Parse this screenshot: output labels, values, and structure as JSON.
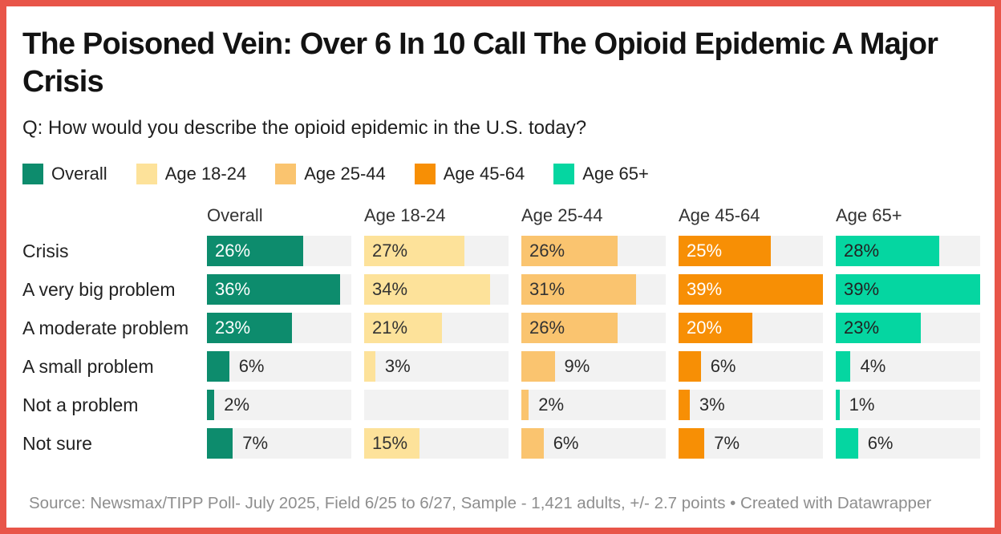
{
  "title": "The Poisoned Vein: Over 6 In 10 Call The Opioid Epidemic A Major Crisis",
  "subtitle": "Q: How would you describe the opioid epidemic in the U.S. today?",
  "footer": "Source: Newsmax/TIPP Poll- July 2025, Field 6/25 to 6/27, Sample - 1,421 adults, +/- 2.7 points • Created with Datawrapper",
  "colors": {
    "frame_border": "#e85549",
    "bar_track": "#f2f2f2",
    "outside_label": "#2b2b2b"
  },
  "chart_data": {
    "type": "bar",
    "categories": [
      "Crisis",
      "A very big problem",
      "A moderate problem",
      "A small problem",
      "Not a problem",
      "Not sure"
    ],
    "series": [
      {
        "name": "Overall",
        "color": "#0d8c6d",
        "label_inside_color": "#ffffff",
        "values": [
          26,
          36,
          23,
          6,
          2,
          7
        ]
      },
      {
        "name": "Age 18-24",
        "color": "#fde29a",
        "label_inside_color": "#333333",
        "values": [
          27,
          34,
          21,
          3,
          null,
          15
        ]
      },
      {
        "name": "Age 25-44",
        "color": "#fac46f",
        "label_inside_color": "#333333",
        "values": [
          26,
          31,
          26,
          9,
          2,
          6
        ]
      },
      {
        "name": "Age 45-64",
        "color": "#f78f05",
        "label_inside_color": "#ffffff",
        "values": [
          25,
          39,
          20,
          6,
          3,
          7
        ]
      },
      {
        "name": "Age 65+",
        "color": "#05d6a1",
        "label_inside_color": "#222222",
        "values": [
          28,
          39,
          23,
          4,
          1,
          6
        ]
      }
    ],
    "value_suffix": "%",
    "xmax": 39,
    "label_inside_threshold": 15,
    "legend_position": "top",
    "grid": false
  }
}
